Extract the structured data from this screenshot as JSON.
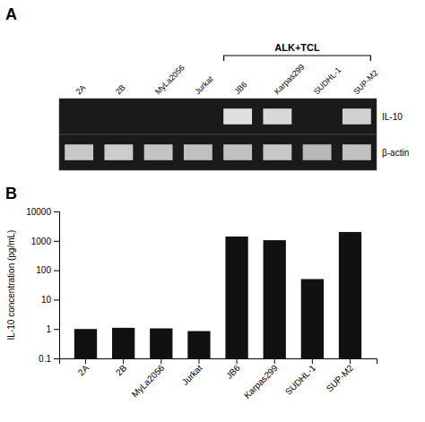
{
  "chart_data": [
    {
      "type": "gel",
      "title": "A",
      "categories": [
        "2A",
        "2B",
        "MyLa2056",
        "Jurkat",
        "JB6",
        "Karpas299",
        "SUDHL-1",
        "SUP-M2"
      ],
      "color": "#1a1a1a",
      "series": [
        {
          "name": "IL-10",
          "colors": [
            null,
            null,
            null,
            null,
            "#e0e0e0",
            "#d8d8d8",
            null,
            "#d0d0d0"
          ]
        },
        {
          "name": "β-actin",
          "colors": [
            "#c8c8c8",
            "#cccccc",
            "#c4c4c4",
            "#c0c0c0",
            "#c0c0c0",
            "#c8c8c8",
            "#b8b8b8",
            "#c0c0c0"
          ]
        }
      ],
      "annotations": [
        {
          "text": "ALK+TCL",
          "from": "JB6",
          "to": "SUP-M2"
        }
      ]
    },
    {
      "type": "bar",
      "title": "B",
      "categories": [
        "2A",
        "2B",
        "MyLa2056",
        "Jurkat",
        "JB6",
        "Karpas299",
        "SUDHL-1",
        "SUP-M2"
      ],
      "values": [
        1.0,
        1.1,
        1.05,
        0.85,
        1400,
        1050,
        50,
        2000
      ],
      "color": "#111111",
      "ylabel": "IL-10 concentration (pg/mL)",
      "log": "y",
      "ylim": [
        0.1,
        10000
      ],
      "yticks": [
        0.1,
        1,
        10,
        100,
        1000,
        10000
      ],
      "grid": false
    }
  ]
}
